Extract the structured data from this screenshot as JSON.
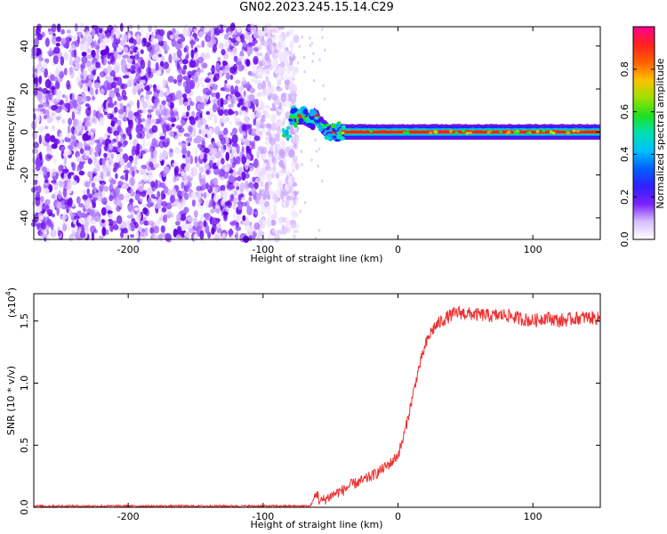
{
  "figure_title": "GN02.2023.245.15.14.C29",
  "chart_data": [
    {
      "type": "heatmap",
      "title": "",
      "xlabel": "Height of straight line (km)",
      "ylabel": "Frequency (Hz)",
      "xlim": [
        -270,
        150
      ],
      "ylim": [
        -50,
        49
      ],
      "x_ticks": [
        -200,
        -100,
        0,
        100
      ],
      "y_ticks": [
        -40,
        -20,
        0,
        20,
        40
      ],
      "colorbar": {
        "label": "Normalized spectral amplitude",
        "range": [
          0.0,
          1.0
        ],
        "ticks": [
          0.0,
          0.2,
          0.4,
          0.6,
          0.8
        ],
        "colormap": [
          "#ffffff",
          "#e8d8ff",
          "#9a3cff",
          "#5a00e0",
          "#2020ff",
          "#00a0ff",
          "#00e0c0",
          "#20e020",
          "#c0e000",
          "#ffa000",
          "#ff2020",
          "#ff0090"
        ]
      },
      "features": [
        {
          "name": "noise",
          "x_range": [
            -270,
            -80
          ],
          "y_range": [
            -50,
            49
          ],
          "amplitude": 0.2
        },
        {
          "name": "carrier",
          "x_range": [
            -80,
            150
          ],
          "frequency_hz": [
            [
              -80,
              7
            ],
            [
              -70,
              7
            ],
            [
              -65,
              5
            ],
            [
              -60,
              8
            ],
            [
              -57,
              3
            ],
            [
              -53,
              1
            ],
            [
              -48,
              0
            ],
            [
              -30,
              0
            ],
            [
              150,
              0
            ]
          ],
          "amplitude": 1.0
        }
      ]
    },
    {
      "type": "line",
      "title": "",
      "xlabel": "Height of straight line (km)",
      "ylabel": "SNR (10 * v/v)",
      "scale_label": "(x10",
      "scale_exp": "4",
      "xlim": [
        -270,
        150
      ],
      "ylim": [
        0,
        1.72
      ],
      "x_ticks": [
        -200,
        -100,
        0,
        100
      ],
      "y_ticks": [
        "0.0",
        "0.5",
        "1.0",
        "1.5"
      ],
      "series": [
        {
          "color": "#ee3030",
          "x": [
            -270,
            -200,
            -100,
            -65,
            -60,
            -58,
            -55,
            -50,
            -45,
            -40,
            -35,
            -30,
            -25,
            -20,
            -15,
            -10,
            -5,
            0,
            3,
            6,
            9,
            12,
            15,
            18,
            21,
            24,
            27,
            30,
            35,
            40,
            45,
            50,
            60,
            70,
            80,
            90,
            100,
            110,
            120,
            130,
            140,
            150
          ],
          "y": [
            0.01,
            0.01,
            0.01,
            0.01,
            0.12,
            0.04,
            0.06,
            0.09,
            0.12,
            0.14,
            0.18,
            0.2,
            0.22,
            0.25,
            0.28,
            0.32,
            0.36,
            0.42,
            0.52,
            0.65,
            0.8,
            0.95,
            1.1,
            1.22,
            1.32,
            1.4,
            1.45,
            1.48,
            1.52,
            1.55,
            1.57,
            1.56,
            1.55,
            1.54,
            1.55,
            1.52,
            1.5,
            1.53,
            1.5,
            1.52,
            1.53,
            1.52
          ],
          "noise_amplitude": 0.05
        }
      ]
    }
  ]
}
